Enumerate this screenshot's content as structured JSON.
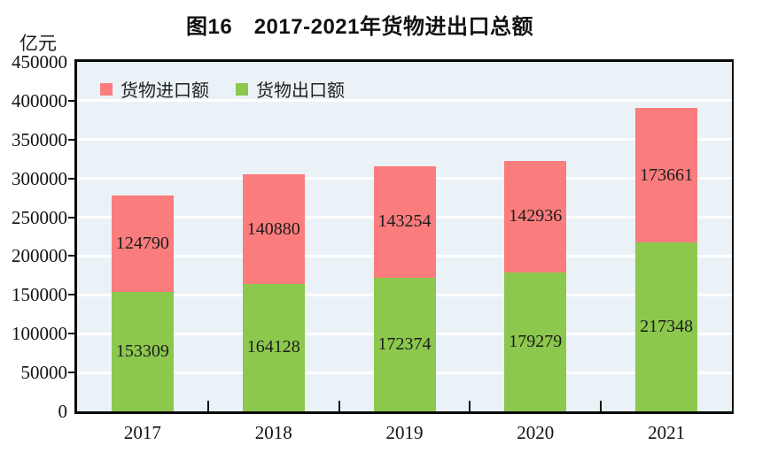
{
  "chart": {
    "title": "图16　2017-2021年货物进出口总额",
    "unit_label": "亿元"
  },
  "chart_data": {
    "type": "bar",
    "stacked": true,
    "title": "图16　2017-2021年货物进出口总额",
    "ylabel": "亿元",
    "categories": [
      "2017",
      "2018",
      "2019",
      "2020",
      "2021"
    ],
    "series": [
      {
        "name": "货物出口额",
        "key": "export",
        "color": "#8CC84D",
        "values": [
          153309,
          164128,
          172374,
          179279,
          217348
        ]
      },
      {
        "name": "货物进口额",
        "key": "import",
        "color": "#FA7C7C",
        "values": [
          124790,
          140880,
          143254,
          142936,
          173661
        ]
      }
    ],
    "legend_order": [
      "货物进口额",
      "货物出口额"
    ],
    "legend_position": "top-left-inside",
    "ylim": [
      0,
      450000
    ],
    "yticks": [
      0,
      50000,
      100000,
      150000,
      200000,
      250000,
      300000,
      350000,
      400000,
      450000
    ],
    "grid": true,
    "gridline_color": "#FFFFFF",
    "plot_background": "#EAF2F7",
    "axis_color": "#0A0A0A",
    "data_label_color": "#1C1C1C"
  }
}
